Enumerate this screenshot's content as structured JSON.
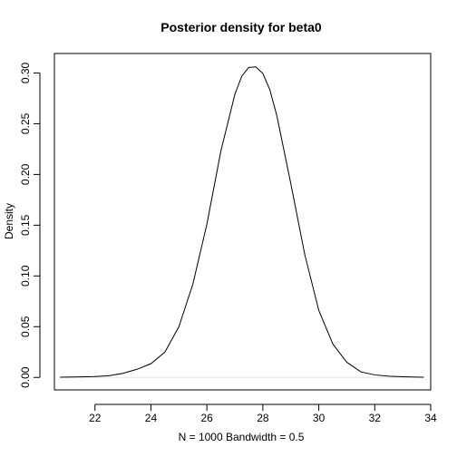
{
  "chart_data": {
    "type": "line",
    "title": "Posterior density for beta0",
    "xlabel": "N = 1000   Bandwidth = 0.5",
    "ylabel": "Density",
    "xlim": [
      20.55,
      34.0
    ],
    "ylim": [
      -0.0123,
      0.3192
    ],
    "x_ticks": [
      "22",
      "24",
      "26",
      "28",
      "30",
      "32",
      "34"
    ],
    "y_ticks": [
      "0.00",
      "0.05",
      "0.10",
      "0.15",
      "0.20",
      "0.25",
      "0.30"
    ],
    "grid": false,
    "baseline_y": 0,
    "baseline_color": "#e6e6e6",
    "line_color": "#000000",
    "series": [
      {
        "x": [
          20.75,
          21.0,
          21.5,
          22.0,
          22.5,
          23.0,
          23.5,
          24.0,
          24.5,
          25.0,
          25.5,
          26.0,
          26.5,
          27.0,
          27.25,
          27.5,
          27.75,
          28.0,
          28.25,
          28.5,
          29.0,
          29.5,
          30.0,
          30.5,
          31.0,
          31.5,
          32.0,
          32.5,
          33.0,
          33.5,
          33.75
        ],
        "y": [
          0.0002,
          0.0003,
          0.0005,
          0.0009,
          0.0017,
          0.004,
          0.008,
          0.0135,
          0.025,
          0.05,
          0.092,
          0.151,
          0.223,
          0.279,
          0.297,
          0.3055,
          0.306,
          0.2995,
          0.2835,
          0.258,
          0.191,
          0.121,
          0.066,
          0.033,
          0.015,
          0.0055,
          0.0025,
          0.0012,
          0.0006,
          0.0003,
          0.0002
        ]
      }
    ]
  }
}
